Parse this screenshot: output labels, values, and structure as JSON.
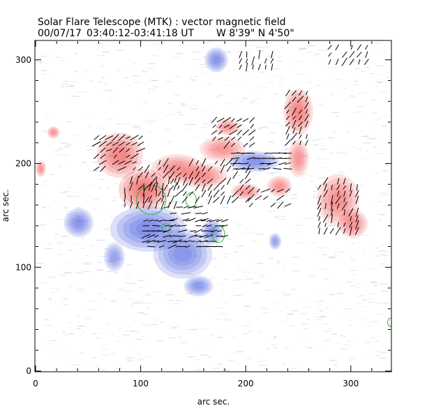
{
  "chart_data": {
    "type": "heatmap",
    "title": "Solar Flare Telescope (MTK) : vector magnetic field",
    "subtitle_date": "00/07/17",
    "subtitle_time": "03:40:12-03:41:18 UT",
    "subtitle_position": "W 8'39\"  N 4'50\"",
    "xlabel": "arc sec.",
    "ylabel": "arc sec.",
    "xlim": [
      0,
      338
    ],
    "ylim": [
      0,
      318
    ],
    "xticks": [
      0,
      100,
      200,
      300
    ],
    "yticks": [
      0,
      100,
      200,
      300
    ],
    "colors": {
      "positive": "#f04848",
      "negative": "#4a60e0",
      "noise": "#9090d8",
      "contour": "#28b428",
      "vector": "#000000"
    },
    "positive_regions": [
      {
        "x": 103,
        "y": 175,
        "rx": 24,
        "ry": 20,
        "v": 1.0
      },
      {
        "x": 80,
        "y": 208,
        "rx": 22,
        "ry": 22,
        "v": 0.75
      },
      {
        "x": 135,
        "y": 195,
        "rx": 25,
        "ry": 14,
        "v": 0.6
      },
      {
        "x": 160,
        "y": 188,
        "rx": 22,
        "ry": 12,
        "v": 0.55
      },
      {
        "x": 178,
        "y": 214,
        "rx": 22,
        "ry": 12,
        "v": 0.5
      },
      {
        "x": 250,
        "y": 250,
        "rx": 14,
        "ry": 22,
        "v": 0.75
      },
      {
        "x": 250,
        "y": 205,
        "rx": 10,
        "ry": 18,
        "v": 0.5
      },
      {
        "x": 288,
        "y": 165,
        "rx": 20,
        "ry": 25,
        "v": 0.6
      },
      {
        "x": 302,
        "y": 142,
        "rx": 14,
        "ry": 14,
        "v": 0.55
      },
      {
        "x": 232,
        "y": 178,
        "rx": 12,
        "ry": 10,
        "v": 0.45
      },
      {
        "x": 183,
        "y": 235,
        "rx": 12,
        "ry": 8,
        "v": 0.35
      },
      {
        "x": 17,
        "y": 230,
        "rx": 6,
        "ry": 6,
        "v": 0.5
      },
      {
        "x": 5,
        "y": 195,
        "rx": 5,
        "ry": 8,
        "v": 0.45
      },
      {
        "x": 200,
        "y": 173,
        "rx": 14,
        "ry": 8,
        "v": 0.45
      }
    ],
    "negative_regions": [
      {
        "x": 107,
        "y": 137,
        "rx": 36,
        "ry": 22,
        "v": 1.0
      },
      {
        "x": 140,
        "y": 113,
        "rx": 28,
        "ry": 24,
        "v": 0.85
      },
      {
        "x": 155,
        "y": 82,
        "rx": 14,
        "ry": 10,
        "v": 0.7
      },
      {
        "x": 41,
        "y": 143,
        "rx": 14,
        "ry": 14,
        "v": 0.85
      },
      {
        "x": 75,
        "y": 110,
        "rx": 10,
        "ry": 14,
        "v": 0.5
      },
      {
        "x": 208,
        "y": 202,
        "rx": 24,
        "ry": 10,
        "v": 0.9
      },
      {
        "x": 168,
        "y": 134,
        "rx": 10,
        "ry": 12,
        "v": 0.9
      },
      {
        "x": 172,
        "y": 300,
        "rx": 11,
        "ry": 12,
        "v": 0.75
      },
      {
        "x": 228,
        "y": 125,
        "rx": 6,
        "ry": 8,
        "v": 0.45
      }
    ],
    "contours": [
      {
        "x": 110,
        "y": 165,
        "rx": 14,
        "ry": 14
      },
      {
        "x": 148,
        "y": 165,
        "rx": 5,
        "ry": 7
      },
      {
        "x": 174,
        "y": 132,
        "rx": 6,
        "ry": 8
      },
      {
        "x": 124,
        "y": 138,
        "rx": 4,
        "ry": 4
      },
      {
        "x": 338,
        "y": 47,
        "rx": 3,
        "ry": 4
      }
    ],
    "vectors": [
      {
        "x0": 58,
        "x1": 102,
        "y0": 195,
        "y1": 225,
        "step": 6,
        "angle": 35
      },
      {
        "x0": 85,
        "x1": 135,
        "y0": 160,
        "y1": 185,
        "step": 6,
        "angle": 80
      },
      {
        "x0": 100,
        "x1": 205,
        "y0": 165,
        "y1": 205,
        "step": 6,
        "angle": 55
      },
      {
        "x0": 125,
        "x1": 165,
        "y0": 140,
        "y1": 160,
        "step": 6,
        "angle": 15
      },
      {
        "x0": 105,
        "x1": 180,
        "y0": 120,
        "y1": 145,
        "step": 5,
        "angle": 10
      },
      {
        "x0": 170,
        "x1": 210,
        "y0": 218,
        "y1": 245,
        "step": 6,
        "angle": 40
      },
      {
        "x0": 190,
        "x1": 240,
        "y0": 195,
        "y1": 212,
        "step": 5,
        "angle": 5
      },
      {
        "x0": 240,
        "x1": 260,
        "y0": 220,
        "y1": 270,
        "step": 6,
        "angle": 60
      },
      {
        "x0": 270,
        "x1": 310,
        "y0": 135,
        "y1": 185,
        "step": 6,
        "angle": 70
      },
      {
        "x0": 205,
        "x1": 245,
        "y0": 160,
        "y1": 180,
        "step": 7,
        "angle": 35
      },
      {
        "x0": 195,
        "x1": 230,
        "y0": 293,
        "y1": 306,
        "step": 6,
        "angle": 75
      },
      {
        "x0": 280,
        "x1": 320,
        "y0": 298,
        "y1": 312,
        "step": 7,
        "angle": 60
      }
    ],
    "annotation": {
      "max_field_scale": 1.0
    }
  }
}
